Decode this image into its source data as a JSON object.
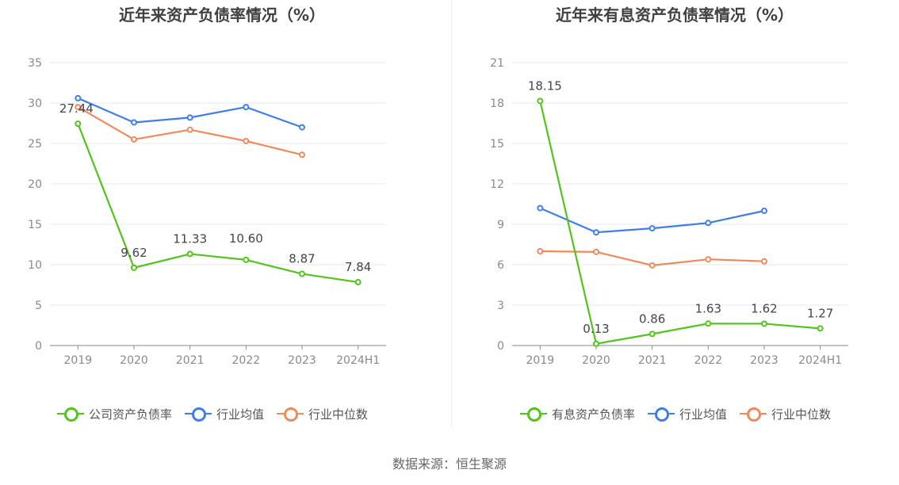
{
  "colors": {
    "company": "#52c41a",
    "avg": "#3f7ee8",
    "median": "#f2895c",
    "grid": "#e4e8ee",
    "axis": "#888888"
  },
  "footer": {
    "source": "数据来源：恒生聚源"
  },
  "chart_data": [
    {
      "id": "left",
      "type": "line",
      "title": "近年来资产负债率情况（%）",
      "categories": [
        "2019",
        "2020",
        "2021",
        "2022",
        "2023",
        "2024H1"
      ],
      "ylim": [
        0,
        35
      ],
      "yticks": [
        0,
        5,
        10,
        15,
        20,
        25,
        30,
        35
      ],
      "grid": true,
      "legend_position": "bottom",
      "series": [
        {
          "key": "company",
          "name": "公司资产负债率",
          "values": [
            27.44,
            9.62,
            11.33,
            10.6,
            8.87,
            7.84
          ],
          "labels": [
            "27.44",
            "9.62",
            "11.33",
            "10.60",
            "8.87",
            "7.84"
          ]
        },
        {
          "key": "avg",
          "name": "行业均值",
          "values": [
            30.6,
            27.6,
            28.2,
            29.5,
            27.0,
            null
          ]
        },
        {
          "key": "median",
          "name": "行业中位数",
          "values": [
            29.5,
            25.5,
            26.7,
            25.3,
            23.6,
            null
          ]
        }
      ]
    },
    {
      "id": "right",
      "type": "line",
      "title": "近年来有息资产负债率情况（%）",
      "categories": [
        "2019",
        "2020",
        "2021",
        "2022",
        "2023",
        "2024H1"
      ],
      "ylim": [
        0,
        21
      ],
      "yticks": [
        0,
        3,
        6,
        9,
        12,
        15,
        18,
        21
      ],
      "grid": true,
      "legend_position": "bottom",
      "series": [
        {
          "key": "company",
          "name": "有息资产负债率",
          "values": [
            18.15,
            0.13,
            0.86,
            1.63,
            1.62,
            1.27
          ],
          "labels": [
            "18.15",
            "0.13",
            "0.86",
            "1.63",
            "1.62",
            "1.27"
          ]
        },
        {
          "key": "avg",
          "name": "行业均值",
          "values": [
            10.2,
            8.4,
            8.7,
            9.1,
            10.0,
            null
          ]
        },
        {
          "key": "median",
          "name": "行业中位数",
          "values": [
            7.0,
            6.95,
            5.95,
            6.4,
            6.25,
            null
          ]
        }
      ]
    }
  ]
}
